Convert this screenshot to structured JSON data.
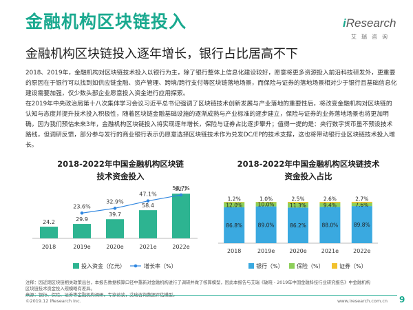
{
  "header": {
    "title": "金融机构区块链投入",
    "subtitle": "金融机构区块链投入逐年增长，银行占比居高不下",
    "logo_text": "Research",
    "logo_prefix": "i",
    "logo_sub": "艾瑞咨询"
  },
  "body": {
    "p1": "2018、2019年，金融机构对区块链技术投入以银行为主，除了银行整体上信息化建设较好，愿意将更多资源投入前沿科技研发外，更重要的原因在于银行可以找到如供应链金融、资产管理、跨境/跨行支付等区块链落地场景，而保险与证券的落地场景相对少于银行且基础信息化建设需要加强，仅少数头部企业愿意投入资金进行应用探索。",
    "p2": "在2019年中央政治局第十八次集体学习会议习近平总书记强调了区块链技术创新发展与产业落地的重要性后，将改变金融机构对区块链的认知与态度并提升技术投入积极性，随着区块链金融基础设施的逐渐成熟与产业标准的逐步建立，保险与证券的业务落地场景也将更加明确，因为我们预估未来3年，金融机构区块链投入将实现逐年增长，保险与证券占比逐步攀升；值得一提的是：央行数字货币虽不预设技术路线，但调研反馈，部分参与发行的商业银行表示仍愿意选择区块链技术作为兑发DC/EP的技术支撑，这也将带动银行业区块链技术投入增长。"
  },
  "colors": {
    "accent": "#1aa98f",
    "bar_green": "#2db491",
    "line_blue": "#2f86e0",
    "bank_blue": "#3aa9e0",
    "insurance_green": "#8dcf5a",
    "securities_yellow": "#f2c12e"
  },
  "chart_data": [
    {
      "type": "bar",
      "title_line1": "2018-2022年中国金融机构区块链",
      "title_line2": "技术资金投入",
      "categories": [
        "2018",
        "2019e",
        "2020e",
        "2021e",
        "2022e"
      ],
      "series": [
        {
          "name": "投入资金（亿元）",
          "values": [
            24.2,
            29.9,
            39.7,
            58.4,
            92.7
          ]
        },
        {
          "name": "增长率（%）",
          "type": "line",
          "values_label": [
            "",
            "23.6%",
            "32.9%",
            "47.1%",
            "58.7%"
          ],
          "values": [
            null,
            23.6,
            32.9,
            47.1,
            58.7
          ]
        }
      ],
      "value_labels": [
        "24.2",
        "29.9",
        "39.7",
        "58.4",
        "92.7"
      ],
      "ylim": [
        0,
        100
      ],
      "y2lim": [
        0,
        70
      ],
      "legend": [
        "投入资金（亿元）",
        "增长率（%）"
      ]
    },
    {
      "type": "bar",
      "stacked": true,
      "title_line1": "2018-2022年中国金融机构区块链技术",
      "title_line2": "资金投入占比",
      "categories": [
        "2018",
        "2019e",
        "2020e",
        "2021e",
        "2022e"
      ],
      "series": [
        {
          "name": "银行（%）",
          "values": [
            86.8,
            89.0,
            86.2,
            88.0,
            89.8
          ],
          "labels": [
            "86.8%",
            "89.0%",
            "86.2%",
            "88.0%",
            "89.8%"
          ]
        },
        {
          "name": "保险（%）",
          "values": [
            12.0,
            10.0,
            11.3,
            9.4,
            7.6
          ],
          "labels": [
            "12.0%",
            "10.0%",
            "11.3%",
            "9.4%",
            "7.6%"
          ]
        },
        {
          "name": "证券（%）",
          "values": [
            1.2,
            1.0,
            2.5,
            2.6,
            2.7
          ],
          "labels": [
            "1.2%",
            "1.0%",
            "2.5%",
            "2.6%",
            "2.7%"
          ]
        }
      ],
      "ylim": [
        0,
        100
      ],
      "legend": [
        "银行（%）",
        "保险（%）",
        "证券（%）"
      ]
    }
  ],
  "notes": {
    "line1": "注释：因近期区块链相关政策出台，本报告数据核算口径中重新对金融机构进行了调研并做了核算模型，因此本报告与艾瑞《破晓 - 2019年中国金融科技行业研究报告》中金融机构",
    "line2": "区块链技术资金投入规模略有差异。",
    "line3": "来源：银行、保险、证券等金融机构调研，专家访谈，艾瑞咨询数据评估模型。"
  },
  "footer": {
    "copyright": "©2019.12 iResearch Inc.",
    "website": "www.iresearch.com.cn",
    "page": "9"
  }
}
